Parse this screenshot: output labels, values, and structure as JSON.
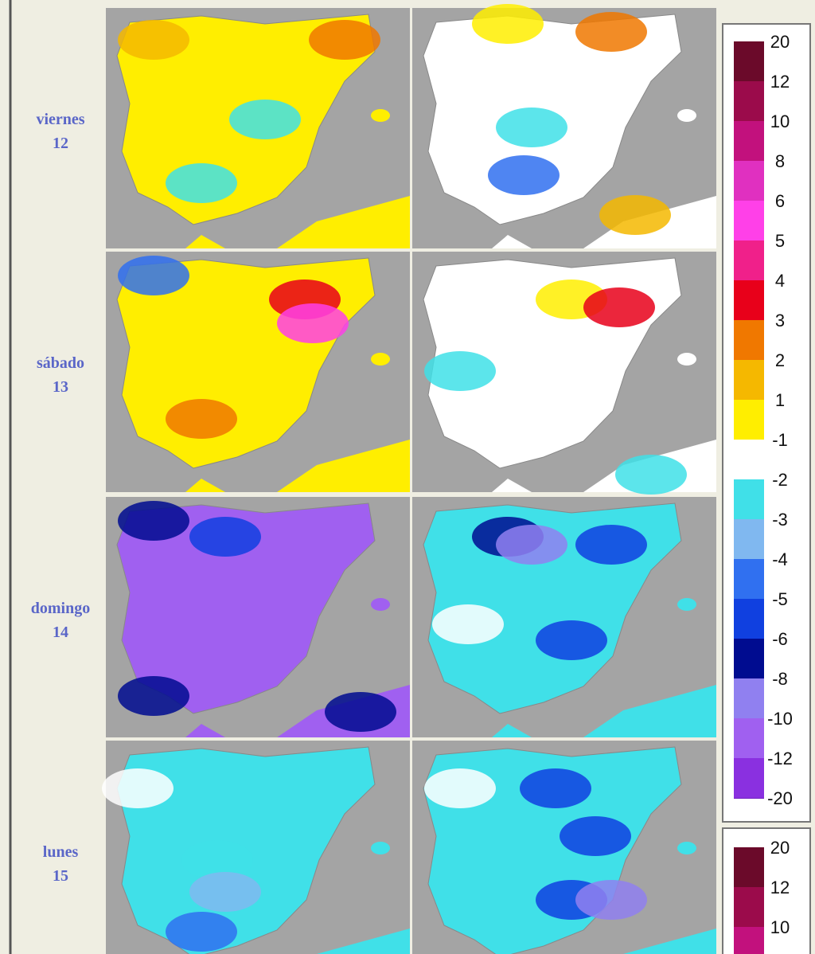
{
  "rows": [
    {
      "day": "viernes",
      "date": "12"
    },
    {
      "day": "sábado",
      "date": "13"
    },
    {
      "day": "domingo",
      "date": "14"
    },
    {
      "day": "lunes",
      "date": "15"
    }
  ],
  "legend": {
    "labels": [
      20,
      12,
      10,
      8,
      6,
      5,
      4,
      3,
      2,
      1,
      -1,
      -2,
      -3,
      -4,
      -5,
      -6,
      -8,
      -10,
      -12,
      -20
    ],
    "colors": [
      "#6b0a2a",
      "#9b0b4b",
      "#c2117d",
      "#e030c0",
      "#ff40e8",
      "#f0208a",
      "#e8001a",
      "#f07800",
      "#f5b800",
      "#ffee00",
      "#ffffff",
      "#40e0e8",
      "#80b8f0",
      "#3070f0",
      "#1040e0",
      "#000c90",
      "#9080f0",
      "#a060f0",
      "#8a30e0",
      "#7020c0"
    ]
  },
  "legend2": {
    "labels": [
      20,
      12,
      10
    ],
    "colors": [
      "#6b0a2a",
      "#9b0b4b",
      "#c2117d"
    ]
  }
}
